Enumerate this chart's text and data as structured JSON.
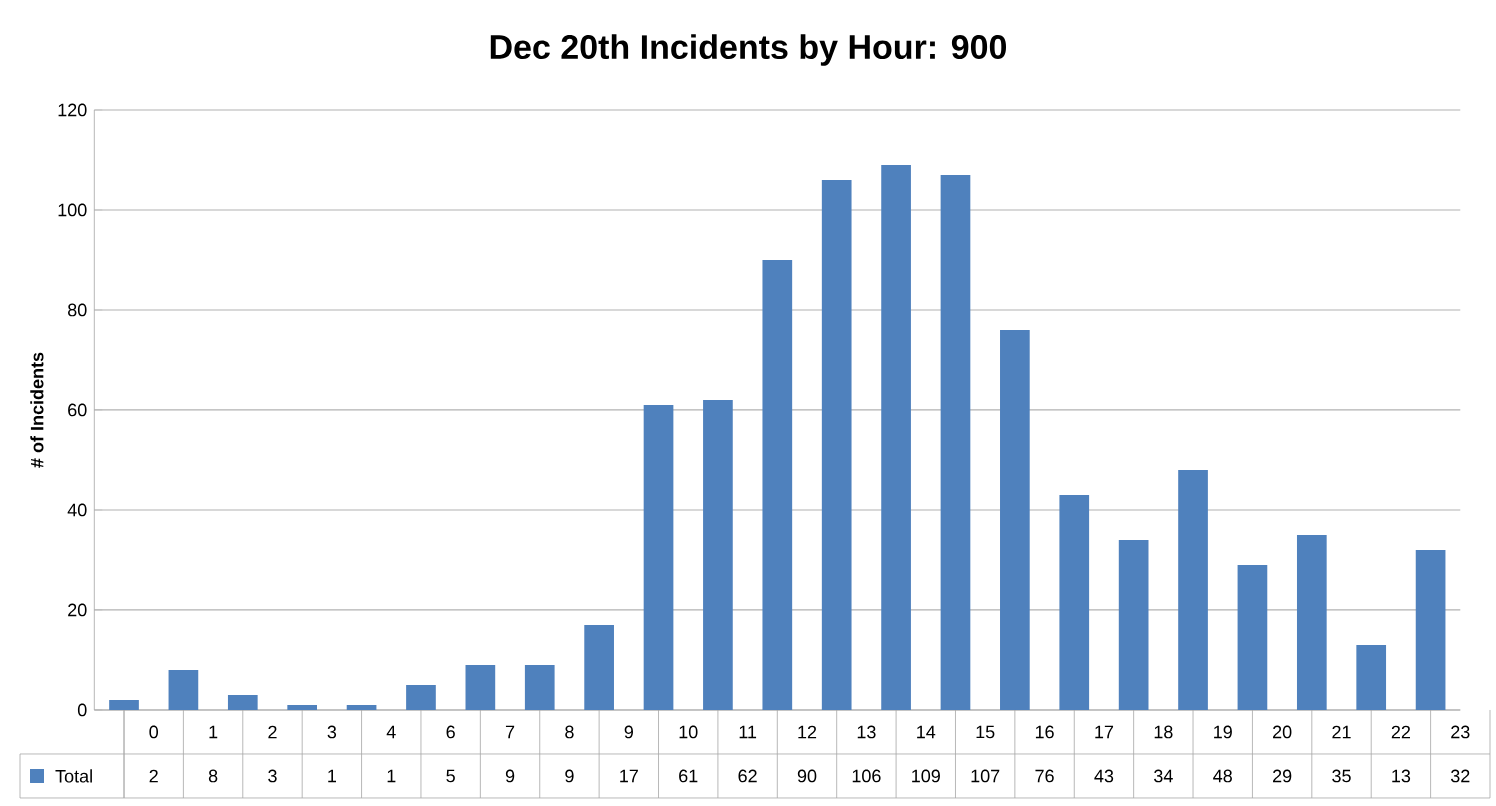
{
  "chart_data": {
    "type": "bar",
    "title": "Dec 20th Incidents by Hour:  900",
    "ylabel": "# of Incidents",
    "categories": [
      "0",
      "1",
      "2",
      "3",
      "4",
      "6",
      "7",
      "8",
      "9",
      "10",
      "11",
      "12",
      "13",
      "14",
      "15",
      "16",
      "17",
      "18",
      "19",
      "20",
      "21",
      "22",
      "23"
    ],
    "series": [
      {
        "name": "Total",
        "color": "#4f81bd",
        "values": [
          2,
          8,
          3,
          1,
          1,
          5,
          9,
          9,
          17,
          61,
          62,
          90,
          106,
          109,
          107,
          76,
          43,
          34,
          48,
          29,
          35,
          13,
          32
        ]
      }
    ],
    "ylim": [
      0,
      120
    ],
    "yticks": [
      0,
      20,
      40,
      60,
      80,
      100,
      120
    ],
    "grid": "y",
    "legend": "bottom",
    "data_labels": true
  }
}
